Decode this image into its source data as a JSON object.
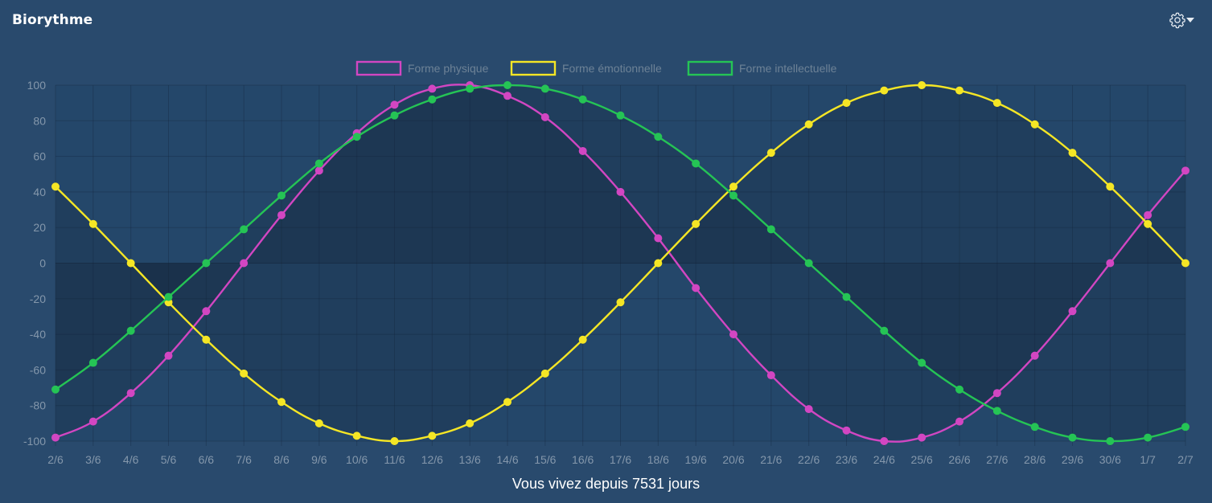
{
  "widget": {
    "title": "Biorythme",
    "footer": "Vous vivez depuis 7531 jours"
  },
  "icons": {
    "settings": "gear-icon",
    "dropdown": "caret-down-icon"
  },
  "chart_data": {
    "type": "line",
    "title": "",
    "xlabel": "",
    "ylabel": "",
    "ylim": [
      -100,
      100
    ],
    "yticks": [
      100,
      80,
      60,
      40,
      20,
      0,
      -20,
      -40,
      -60,
      -80,
      -100
    ],
    "grid": true,
    "legend_position": "top",
    "categories": [
      "2/6",
      "3/6",
      "4/6",
      "5/6",
      "6/6",
      "7/6",
      "8/6",
      "9/6",
      "10/6",
      "11/6",
      "12/6",
      "13/6",
      "14/6",
      "15/6",
      "16/6",
      "17/6",
      "18/6",
      "19/6",
      "20/6",
      "21/6",
      "22/6",
      "23/6",
      "24/6",
      "25/6",
      "26/6",
      "27/6",
      "28/6",
      "29/6",
      "30/6",
      "1/7",
      "2/7"
    ],
    "series": [
      {
        "name": "Forme physique",
        "color": "#d246c2",
        "values": [
          -98,
          -89,
          -73,
          -52,
          -27,
          0,
          27,
          52,
          73,
          89,
          98,
          100,
          94,
          82,
          63,
          40,
          14,
          -14,
          -40,
          -63,
          -82,
          -94,
          -100,
          -98,
          -89,
          -73,
          -52,
          -27,
          0,
          27,
          52
        ]
      },
      {
        "name": "Forme émotionnelle",
        "color": "#f5e625",
        "values": [
          43,
          22,
          0,
          -22,
          -43,
          -62,
          -78,
          -90,
          -97,
          -100,
          -97,
          -90,
          -78,
          -62,
          -43,
          -22,
          0,
          22,
          43,
          62,
          78,
          90,
          97,
          100,
          97,
          90,
          78,
          62,
          43,
          22,
          0
        ]
      },
      {
        "name": "Forme intellectuelle",
        "color": "#25c455",
        "values": [
          -71,
          -56,
          -38,
          -19,
          0,
          19,
          38,
          56,
          71,
          83,
          92,
          98,
          100,
          98,
          92,
          83,
          71,
          56,
          38,
          19,
          0,
          -19,
          -38,
          -56,
          -71,
          -83,
          -92,
          -98,
          -100,
          -98,
          -92
        ]
      }
    ]
  }
}
